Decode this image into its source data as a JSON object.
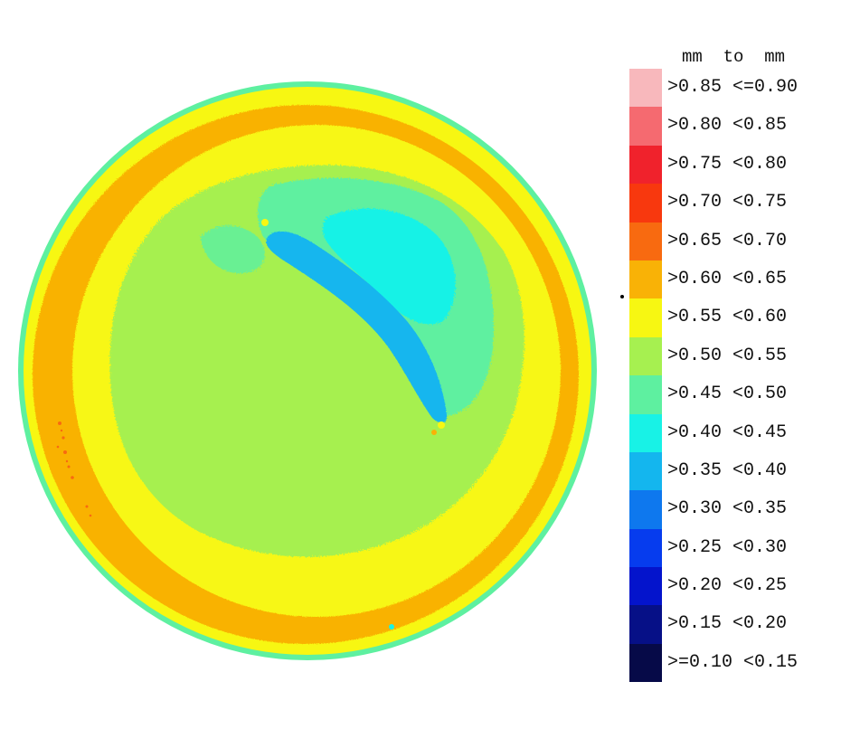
{
  "chart_data": {
    "type": "heatmap",
    "title": "",
    "subject": "circular thickness contour map",
    "legend": {
      "placement": "right",
      "header": "mm  to  mm",
      "bins": [
        {
          "label": ">0.85 <=0.90",
          "min": 0.85,
          "max": 0.9,
          "color": "#f8b8bc"
        },
        {
          "label": ">0.80 <0.85",
          "min": 0.8,
          "max": 0.85,
          "color": "#f56a70"
        },
        {
          "label": ">0.75 <0.80",
          "min": 0.75,
          "max": 0.8,
          "color": "#f0222c"
        },
        {
          "label": ">0.70 <0.75",
          "min": 0.7,
          "max": 0.75,
          "color": "#f8380e"
        },
        {
          "label": ">0.65 <0.70",
          "min": 0.65,
          "max": 0.7,
          "color": "#f86a10"
        },
        {
          "label": ">0.60 <0.65",
          "min": 0.6,
          "max": 0.65,
          "color": "#f9b206"
        },
        {
          "label": ">0.55 <0.60",
          "min": 0.55,
          "max": 0.6,
          "color": "#f7f712"
        },
        {
          "label": ">0.50 <0.55",
          "min": 0.5,
          "max": 0.55,
          "color": "#a6f050"
        },
        {
          "label": ">0.45 <0.50",
          "min": 0.45,
          "max": 0.5,
          "color": "#5ef0a0"
        },
        {
          "label": ">0.40 <0.45",
          "min": 0.4,
          "max": 0.45,
          "color": "#18f2e6"
        },
        {
          "label": ">0.35 <0.40",
          "min": 0.35,
          "max": 0.4,
          "color": "#14b6ee"
        },
        {
          "label": ">0.30 <0.35",
          "min": 0.3,
          "max": 0.35,
          "color": "#0e78ee"
        },
        {
          "label": ">0.25 <0.30",
          "min": 0.25,
          "max": 0.3,
          "color": "#063cee"
        },
        {
          "label": ">0.20 <0.25",
          "min": 0.2,
          "max": 0.25,
          "color": "#0414cc"
        },
        {
          "label": ">0.15 <0.20",
          "min": 0.15,
          "max": 0.2,
          "color": "#061087"
        },
        {
          "label": ">=0.10 <0.15",
          "min": 0.1,
          "max": 0.15,
          "color": "#060a48"
        }
      ]
    },
    "regions": [
      {
        "name": "outer-rim",
        "range": ">0.45 <0.50",
        "color": "#5ef0a0"
      },
      {
        "name": "outer-yellow-ring",
        "range": ">0.55 <0.60",
        "color": "#f7f712"
      },
      {
        "name": "orange-ring",
        "range": ">0.60 <0.65",
        "color": "#f9b206"
      },
      {
        "name": "inner-yellow-ring",
        "range": ">0.55 <0.60",
        "color": "#f7f712"
      },
      {
        "name": "center",
        "range": ">0.50 <0.55",
        "color": "#a6f050"
      },
      {
        "name": "upper-right-patch",
        "range": ">0.45 <0.50",
        "color": "#5ef0a0"
      },
      {
        "name": "upper-right-inner-patch",
        "range": ">0.40 <0.45",
        "color": "#18f2e6"
      },
      {
        "name": "diagonal-streak",
        "range": ">0.35 <0.40",
        "color": "#14b6ee"
      }
    ]
  }
}
